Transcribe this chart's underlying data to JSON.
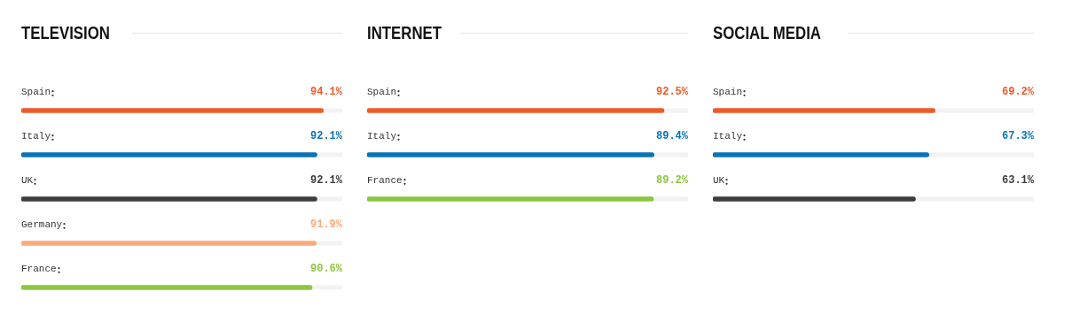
{
  "chart_data": [
    {
      "type": "bar",
      "orientation": "horizontal",
      "title": "TELEVISION",
      "categories": [
        "Spain",
        "Italy",
        "UK",
        "Germany",
        "France"
      ],
      "values": [
        94.1,
        92.1,
        92.1,
        91.9,
        90.6
      ],
      "colors": [
        "#f05a28",
        "#0a73b8",
        "#3d3d3d",
        "#f9ab7e",
        "#8cc63f"
      ],
      "value_labels": [
        "94.1%",
        "92.1%",
        "92.1%",
        "91.9%",
        "90.6%"
      ],
      "xlim": [
        0,
        100
      ],
      "tick_labels": false
    },
    {
      "type": "bar",
      "orientation": "horizontal",
      "title": "INTERNET",
      "categories": [
        "Spain",
        "Italy",
        "France"
      ],
      "values": [
        92.5,
        89.4,
        89.2
      ],
      "colors": [
        "#f05a28",
        "#0a73b8",
        "#8cc63f"
      ],
      "value_labels": [
        "92.5%",
        "89.4%",
        "89.2%"
      ],
      "xlim": [
        0,
        100
      ],
      "tick_labels": false
    },
    {
      "type": "bar",
      "orientation": "horizontal",
      "title": "SOCIAL MEDIA",
      "categories": [
        "Spain",
        "Italy",
        "UK"
      ],
      "values": [
        69.2,
        67.3,
        63.1
      ],
      "colors": [
        "#f05a28",
        "#0a73b8",
        "#3d3d3d"
      ],
      "value_labels": [
        "69.2%",
        "67.3%",
        "63.1%"
      ],
      "xlim": [
        0,
        100
      ],
      "tick_labels": false
    }
  ]
}
